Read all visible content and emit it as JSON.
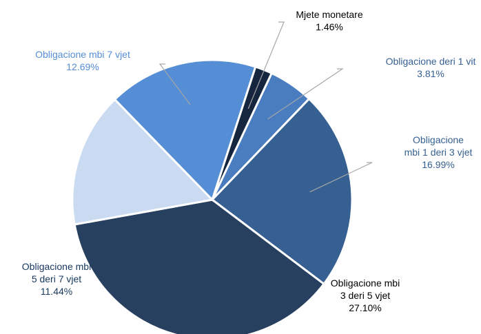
{
  "chart_data": {
    "type": "pie",
    "categories": [
      "Mjete monetare",
      "Obligacione deri 1 vit",
      "Obligacione mbi 1 deri 3 vjet",
      "Obligacione mbi 3 deri 5 vjet",
      "Obligacione mbi 5 deri 7 vjet",
      "Obligacione mbi 7 vjet"
    ],
    "values": [
      1.46,
      3.81,
      16.99,
      27.1,
      11.44,
      12.69
    ],
    "value_labels": [
      "1.46%",
      "3.81%",
      "16.99%",
      "27.10%",
      "11.44%",
      "12.69%"
    ],
    "colors": [
      "#17263f",
      "#4a7cc0",
      "#376092",
      "#27405f",
      "#c9daf1",
      "#558ed5"
    ]
  }
}
